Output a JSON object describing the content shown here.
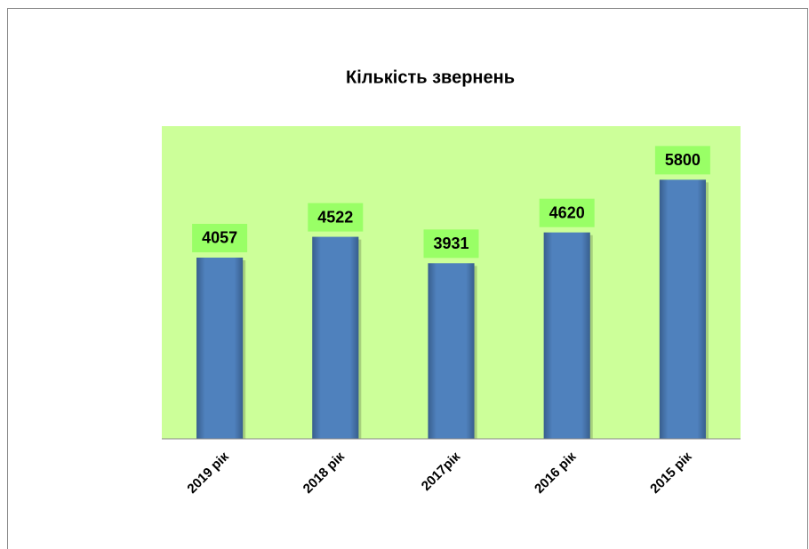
{
  "chart_data": {
    "type": "bar",
    "title": "Кількість  звернень",
    "categories": [
      "2019 рік",
      "2018 рік",
      "2017рік",
      "2016 рік",
      "2015 рік"
    ],
    "values": [
      4057,
      4522,
      3931,
      4620,
      5800
    ],
    "color": "#4f81bd",
    "ylim": [
      0,
      7000
    ]
  }
}
